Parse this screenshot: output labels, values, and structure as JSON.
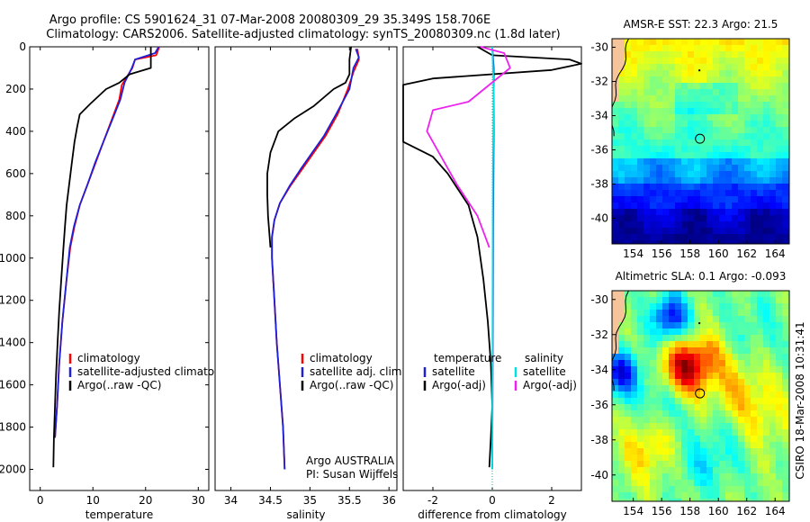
{
  "header": {
    "line1": "Argo profile: CS 5901624_31 07-Mar-2008 20080309_29 35.349S 158.706E",
    "line2": "Climatology: CARS2006. Satellite-adjusted climatology: synTS_20080309.nc (1.8d later)"
  },
  "side_label": "CSIRO 18-Mar-2008 10:31:41",
  "colors": {
    "red": "#ff0000",
    "blue": "#1f1fd6",
    "black": "#000000",
    "cyan": "#00e0e0",
    "magenta": "#ee22ee",
    "land": "#f5c49a"
  },
  "chart_data": [
    {
      "id": "temperature",
      "type": "line",
      "xlabel": "temperature",
      "ylabel": "",
      "xlim": [
        -2,
        32
      ],
      "ylim": [
        2100,
        0
      ],
      "xticks": [
        0,
        10,
        20,
        30
      ],
      "yticks": [
        0,
        200,
        400,
        600,
        800,
        1000,
        1200,
        1400,
        1600,
        1800,
        2000
      ],
      "series": [
        {
          "name": "climatology",
          "color": "red",
          "points": [
            [
              22.6,
              0
            ],
            [
              22.0,
              40
            ],
            [
              18.0,
              60
            ],
            [
              17.5,
              100
            ],
            [
              15.5,
              180
            ],
            [
              15.0,
              250
            ],
            [
              13.5,
              350
            ],
            [
              12.0,
              450
            ],
            [
              10.5,
              550
            ],
            [
              9.0,
              650
            ],
            [
              7.5,
              750
            ],
            [
              6.5,
              850
            ],
            [
              5.7,
              950
            ],
            [
              5.0,
              1100
            ],
            [
              4.2,
              1300
            ],
            [
              3.6,
              1500
            ],
            [
              3.2,
              1700
            ],
            [
              2.8,
              1850
            ]
          ]
        },
        {
          "name": "satellite-adjusted climatology",
          "color": "blue",
          "points": [
            [
              22.5,
              0
            ],
            [
              21.8,
              30
            ],
            [
              18.0,
              60
            ],
            [
              17.4,
              100
            ],
            [
              16.0,
              170
            ],
            [
              15.2,
              250
            ],
            [
              13.6,
              350
            ],
            [
              12.0,
              450
            ],
            [
              10.4,
              550
            ],
            [
              9.0,
              650
            ],
            [
              7.5,
              750
            ],
            [
              6.4,
              850
            ],
            [
              5.6,
              950
            ],
            [
              5.0,
              1100
            ],
            [
              4.2,
              1300
            ],
            [
              3.6,
              1500
            ],
            [
              3.2,
              1700
            ],
            [
              2.8,
              1850
            ]
          ]
        },
        {
          "name": "Argo(..raw -QC)",
          "color": "black",
          "points": [
            [
              21.0,
              0
            ],
            [
              21.0,
              100
            ],
            [
              17.0,
              130
            ],
            [
              15.0,
              170
            ],
            [
              12.5,
              200
            ],
            [
              9.5,
              270
            ],
            [
              7.5,
              320
            ],
            [
              7.0,
              380
            ],
            [
              6.5,
              450
            ],
            [
              6.0,
              550
            ],
            [
              5.5,
              650
            ],
            [
              5.0,
              750
            ],
            [
              4.7,
              850
            ],
            [
              4.4,
              950
            ],
            [
              4.0,
              1100
            ],
            [
              3.6,
              1250
            ],
            [
              3.3,
              1400
            ],
            [
              3.0,
              1550
            ],
            [
              2.8,
              1700
            ],
            [
              2.6,
              1850
            ],
            [
              2.5,
              1990
            ]
          ]
        }
      ]
    },
    {
      "id": "salinity",
      "type": "line",
      "xlabel": "salinity",
      "ylabel": "",
      "xlim": [
        33.8,
        36.1
      ],
      "ylim": [
        2100,
        0
      ],
      "xticks": [
        34,
        34.5,
        35,
        35.5,
        36
      ],
      "yticks": [],
      "series": [
        {
          "name": "climatology",
          "color": "red",
          "points": [
            [
              35.6,
              10
            ],
            [
              35.62,
              60
            ],
            [
              35.55,
              120
            ],
            [
              35.48,
              200
            ],
            [
              35.35,
              320
            ],
            [
              35.2,
              420
            ],
            [
              35.05,
              500
            ],
            [
              34.9,
              580
            ],
            [
              34.75,
              660
            ],
            [
              34.62,
              740
            ],
            [
              34.55,
              820
            ],
            [
              34.52,
              900
            ],
            [
              34.52,
              1000
            ],
            [
              34.55,
              1200
            ],
            [
              34.58,
              1400
            ],
            [
              34.62,
              1600
            ],
            [
              34.66,
              1800
            ],
            [
              34.68,
              2000
            ]
          ]
        },
        {
          "name": "satellite adj. clim.",
          "color": "blue",
          "points": [
            [
              35.58,
              10
            ],
            [
              35.62,
              50
            ],
            [
              35.55,
              100
            ],
            [
              35.5,
              200
            ],
            [
              35.33,
              320
            ],
            [
              35.18,
              420
            ],
            [
              35.03,
              500
            ],
            [
              34.88,
              580
            ],
            [
              34.74,
              660
            ],
            [
              34.62,
              740
            ],
            [
              34.55,
              820
            ],
            [
              34.52,
              900
            ],
            [
              34.52,
              1000
            ],
            [
              34.55,
              1200
            ],
            [
              34.58,
              1400
            ],
            [
              34.62,
              1600
            ],
            [
              34.66,
              1800
            ],
            [
              34.68,
              2000
            ]
          ]
        },
        {
          "name": "Argo(..raw -QC)",
          "color": "black",
          "points": [
            [
              35.52,
              0
            ],
            [
              35.5,
              60
            ],
            [
              35.5,
              130
            ],
            [
              35.45,
              170
            ],
            [
              35.3,
              200
            ],
            [
              35.05,
              280
            ],
            [
              34.8,
              340
            ],
            [
              34.6,
              400
            ],
            [
              34.5,
              500
            ],
            [
              34.46,
              600
            ],
            [
              34.46,
              700
            ],
            [
              34.47,
              800
            ],
            [
              34.5,
              950
            ]
          ]
        }
      ]
    },
    {
      "id": "difference",
      "type": "line",
      "xlabel": "difference from climatology",
      "ylabel": "",
      "xlim": [
        -3,
        3
      ],
      "ylim": [
        2100,
        0
      ],
      "xticks": [
        -2,
        0,
        2
      ],
      "yticks": [],
      "series": [
        {
          "name": "temperature satellite",
          "color": "blue",
          "points": [
            [
              0,
              0
            ],
            [
              0.05,
              100
            ],
            [
              0.05,
              400
            ],
            [
              0.03,
              800
            ],
            [
              0.02,
              1200
            ],
            [
              0.0,
              2000
            ]
          ]
        },
        {
          "name": "temperature Argo(-adj)",
          "color": "black",
          "points": [
            [
              -0.5,
              0
            ],
            [
              0.0,
              40
            ],
            [
              2.6,
              60
            ],
            [
              3.0,
              80
            ],
            [
              2.0,
              110
            ],
            [
              -2.0,
              150
            ],
            [
              -3.0,
              180
            ],
            [
              -3.0,
              300
            ],
            [
              -3.0,
              450
            ],
            [
              -2.0,
              520
            ],
            [
              -1.5,
              600
            ],
            [
              -0.8,
              750
            ],
            [
              -0.5,
              900
            ],
            [
              -0.3,
              1100
            ],
            [
              -0.15,
              1300
            ],
            [
              -0.05,
              1500
            ],
            [
              0,
              1700
            ],
            [
              -0.05,
              1850
            ],
            [
              -0.1,
              1990
            ]
          ]
        },
        {
          "name": "salinity satellite",
          "color": "cyan",
          "points": [
            [
              0,
              0
            ],
            [
              0.05,
              200
            ],
            [
              0.02,
              600
            ],
            [
              0.01,
              1200
            ],
            [
              0.0,
              2000
            ]
          ]
        },
        {
          "name": "salinity Argo(-adj)",
          "color": "magenta",
          "points": [
            [
              -0.4,
              0
            ],
            [
              0.4,
              30
            ],
            [
              0.6,
              100
            ],
            [
              -0.8,
              260
            ],
            [
              -2.0,
              300
            ],
            [
              -2.2,
              400
            ],
            [
              -1.8,
              500
            ],
            [
              -1.2,
              650
            ],
            [
              -0.5,
              800
            ],
            [
              -0.1,
              950
            ]
          ]
        }
      ]
    }
  ],
  "legends": {
    "temperature": [
      {
        "label": "climatology",
        "color": "red"
      },
      {
        "label": "satellite-adjusted climatology",
        "color": "blue"
      },
      {
        "label": "Argo(..raw -QC)",
        "color": "black"
      }
    ],
    "salinity": [
      {
        "label": "climatology",
        "color": "red"
      },
      {
        "label": "satellite adj. clim.",
        "color": "blue"
      },
      {
        "label": "Argo(..raw -QC)",
        "color": "black"
      }
    ],
    "difference_col1": [
      {
        "label": "temperature",
        "color": ""
      },
      {
        "label": "satellite",
        "color": "blue"
      },
      {
        "label": "Argo(-adj)",
        "color": "black"
      }
    ],
    "difference_col2": [
      {
        "label": "salinity",
        "color": ""
      },
      {
        "label": "satellite",
        "color": "cyan"
      },
      {
        "label": "Argo(-adj)",
        "color": "magenta"
      }
    ]
  },
  "attribution": {
    "line1": "Argo AUSTRALIA",
    "line2": "PI: Susan Wijffels"
  },
  "maps": [
    {
      "id": "sst",
      "title": "AMSR-E SST: 22.3  Argo: 21.5",
      "xticks": [
        154,
        156,
        158,
        160,
        162,
        164
      ],
      "yticks": [
        -30,
        -32,
        -34,
        -36,
        -38,
        -40
      ],
      "xlim": [
        152.5,
        165
      ],
      "ylim": [
        -41.5,
        -29.5
      ],
      "float": [
        158.7,
        -35.35
      ]
    },
    {
      "id": "sla",
      "title": "Altimetric SLA: 0.1  Argo: -0.093",
      "xticks": [
        154,
        156,
        158,
        160,
        162,
        164
      ],
      "yticks": [
        -30,
        -32,
        -34,
        -36,
        -38,
        -40
      ],
      "xlim": [
        152.5,
        165
      ],
      "ylim": [
        -41.5,
        -29.5
      ],
      "float": [
        158.7,
        -35.35
      ]
    }
  ]
}
